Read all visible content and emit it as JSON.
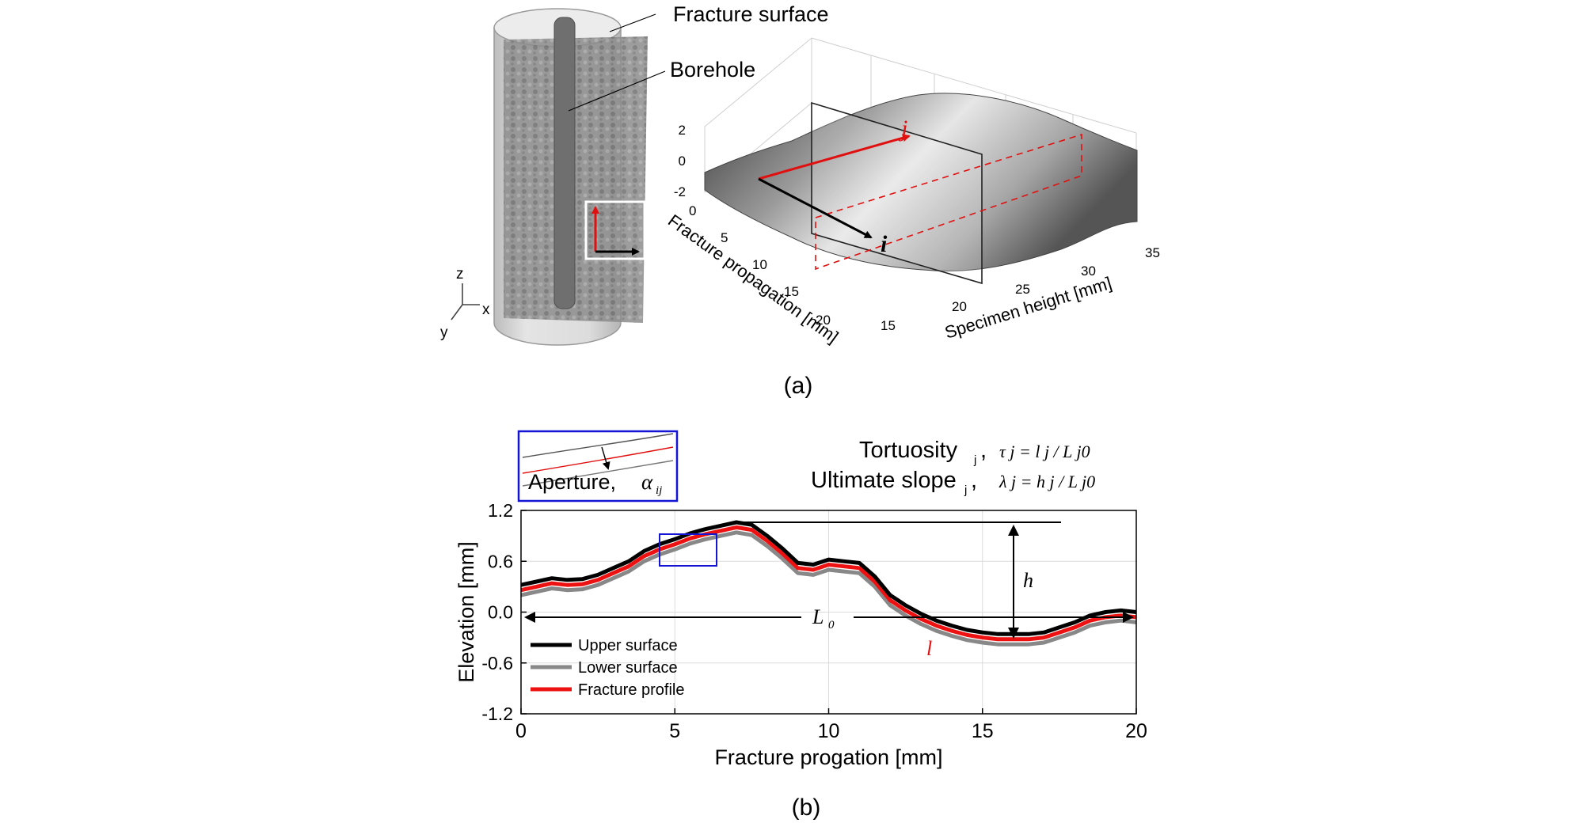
{
  "panel_a": {
    "caption": "(a)",
    "cylinder_labels": {
      "fracture_surface": "Fracture surface",
      "borehole": "Borehole"
    },
    "axis_triad": {
      "z": "z",
      "x": "x",
      "y": "y"
    },
    "surface_plot": {
      "vector_i": "i",
      "vector_j": "j",
      "x_axis_label": "Fracture propagation [mm]",
      "y_axis_label": "Specimen height [mm]",
      "x_ticks": [
        "0",
        "5",
        "10",
        "15",
        "20"
      ],
      "y_ticks": [
        "15",
        "20",
        "25",
        "30",
        "35"
      ],
      "z_ticks": [
        "2",
        "0",
        "-2"
      ]
    }
  },
  "panel_b": {
    "caption": "(b)",
    "inset_label_text": "Aperture,",
    "inset_label_symbol": "α",
    "inset_label_sub": "ij",
    "tortuosity_label": "Tortuosity",
    "tortuosity_sub": "j",
    "tortuosity_formula": "τ j = l j / L j0",
    "slope_label": "Ultimate slope",
    "slope_sub": "j",
    "slope_formula": "λ j = h j / L j0",
    "annotation_h": "h",
    "annotation_L0": "L",
    "annotation_L0_sub": "0",
    "annotation_l": "l"
  },
  "colors": {
    "upper": "#000000",
    "lower": "#888888",
    "profile": "#ee1111",
    "inset_box": "#1414d4",
    "vector_j": "#e01010"
  },
  "chart_data": {
    "type": "line",
    "title": "",
    "xlabel": "Fracture progation [mm]",
    "ylabel": "Elevation [mm]",
    "xlim": [
      0,
      20
    ],
    "ylim": [
      -1.2,
      1.2
    ],
    "xticks": [
      0,
      5,
      10,
      15,
      20
    ],
    "yticks": [
      -1.2,
      -0.6,
      0.0,
      0.6,
      1.2
    ],
    "grid": true,
    "legend_position": "bottom-left",
    "series": [
      {
        "name": "Upper surface",
        "color": "#000000",
        "x": [
          0,
          0.5,
          1,
          1.5,
          2,
          2.5,
          3,
          3.5,
          4,
          4.5,
          5,
          5.5,
          6,
          6.5,
          7,
          7.5,
          8,
          8.5,
          9,
          9.5,
          10,
          10.5,
          11,
          11.5,
          12,
          12.5,
          13,
          13.5,
          14,
          14.5,
          15,
          15.5,
          16,
          16.5,
          17,
          17.5,
          18,
          18.5,
          19,
          19.5,
          20
        ],
        "y": [
          0.32,
          0.36,
          0.4,
          0.38,
          0.39,
          0.44,
          0.52,
          0.6,
          0.72,
          0.8,
          0.86,
          0.93,
          0.98,
          1.02,
          1.06,
          1.03,
          0.9,
          0.75,
          0.58,
          0.56,
          0.62,
          0.6,
          0.58,
          0.42,
          0.2,
          0.08,
          -0.02,
          -0.1,
          -0.16,
          -0.21,
          -0.24,
          -0.26,
          -0.26,
          -0.26,
          -0.24,
          -0.18,
          -0.12,
          -0.04,
          0.0,
          0.02,
          0.0
        ]
      },
      {
        "name": "Lower surface",
        "color": "#888888",
        "x": [
          0,
          0.5,
          1,
          1.5,
          2,
          2.5,
          3,
          3.5,
          4,
          4.5,
          5,
          5.5,
          6,
          6.5,
          7,
          7.5,
          8,
          8.5,
          9,
          9.5,
          10,
          10.5,
          11,
          11.5,
          12,
          12.5,
          13,
          13.5,
          14,
          14.5,
          15,
          15.5,
          16,
          16.5,
          17,
          17.5,
          18,
          18.5,
          19,
          19.5,
          20
        ],
        "y": [
          0.2,
          0.24,
          0.28,
          0.26,
          0.27,
          0.32,
          0.4,
          0.48,
          0.6,
          0.68,
          0.74,
          0.81,
          0.86,
          0.9,
          0.94,
          0.91,
          0.78,
          0.63,
          0.46,
          0.44,
          0.5,
          0.48,
          0.46,
          0.3,
          0.08,
          -0.04,
          -0.14,
          -0.22,
          -0.28,
          -0.33,
          -0.36,
          -0.38,
          -0.38,
          -0.38,
          -0.36,
          -0.3,
          -0.24,
          -0.16,
          -0.12,
          -0.1,
          -0.12
        ]
      },
      {
        "name": "Fracture profile",
        "color": "#ee1111",
        "x": [
          0,
          0.5,
          1,
          1.5,
          2,
          2.5,
          3,
          3.5,
          4,
          4.5,
          5,
          5.5,
          6,
          6.5,
          7,
          7.5,
          8,
          8.5,
          9,
          9.5,
          10,
          10.5,
          11,
          11.5,
          12,
          12.5,
          13,
          13.5,
          14,
          14.5,
          15,
          15.5,
          16,
          16.5,
          17,
          17.5,
          18,
          18.5,
          19,
          19.5,
          20
        ],
        "y": [
          0.26,
          0.3,
          0.34,
          0.32,
          0.33,
          0.38,
          0.46,
          0.54,
          0.66,
          0.74,
          0.8,
          0.87,
          0.92,
          0.96,
          1.0,
          0.97,
          0.84,
          0.69,
          0.52,
          0.5,
          0.56,
          0.54,
          0.52,
          0.36,
          0.14,
          0.02,
          -0.08,
          -0.16,
          -0.22,
          -0.27,
          -0.3,
          -0.32,
          -0.32,
          -0.32,
          -0.3,
          -0.24,
          -0.18,
          -0.1,
          -0.06,
          -0.04,
          -0.06
        ]
      }
    ]
  }
}
